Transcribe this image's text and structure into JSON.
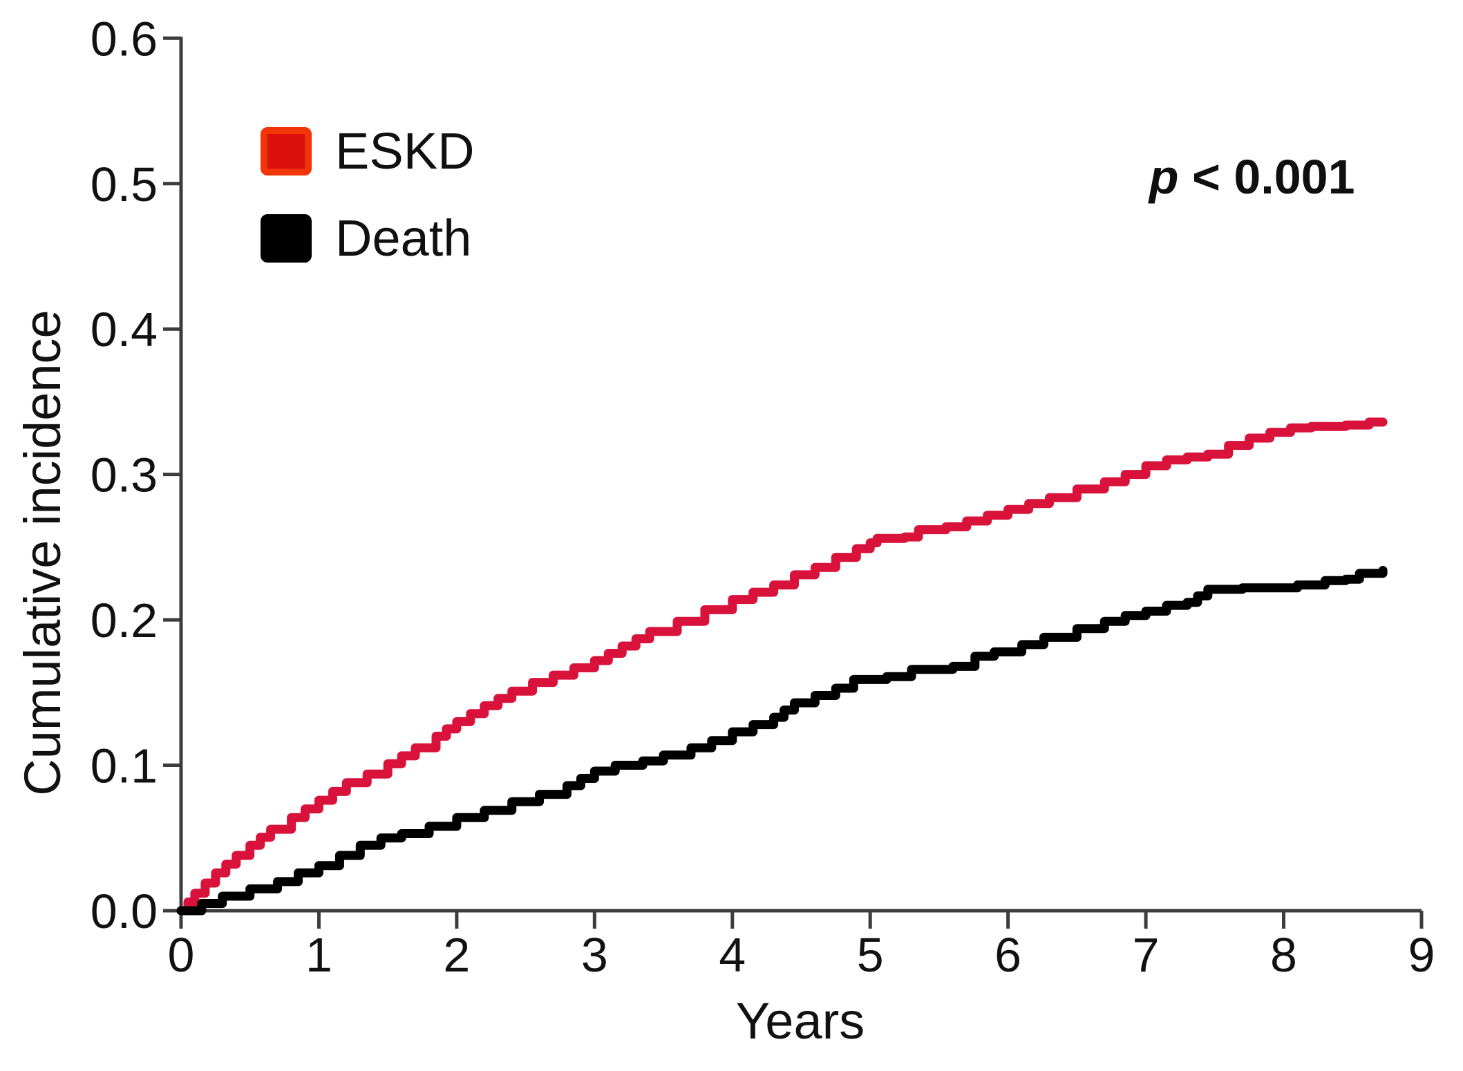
{
  "chart_data": {
    "type": "line",
    "title": "",
    "xlabel": "Years",
    "ylabel": "Cumulative incidence",
    "annotation": {
      "variable": "p",
      "comparison": " < 0.001"
    },
    "x_range": [
      0,
      9
    ],
    "y_range": [
      0.0,
      0.6
    ],
    "x_ticks": [
      "0",
      "1",
      "2",
      "3",
      "4",
      "5",
      "6",
      "7",
      "8",
      "9"
    ],
    "y_ticks": [
      "0.0",
      "0.1",
      "0.2",
      "0.3",
      "0.4",
      "0.5",
      "0.6"
    ],
    "grid": false,
    "legend_position": "inside-top-left",
    "axis_color": "#3C3C3C",
    "text_color": "#111111",
    "series": [
      {
        "name": "ESKD",
        "line_color": "#D8123A",
        "swatch_fill": "#DB100D",
        "swatch_border": "#F23508",
        "points": [
          [
            0,
            0
          ],
          [
            0.1,
            0.012
          ],
          [
            0.25,
            0.026
          ],
          [
            0.4,
            0.038
          ],
          [
            0.5,
            0.045
          ],
          [
            0.65,
            0.056
          ],
          [
            0.8,
            0.064
          ],
          [
            1,
            0.076
          ],
          [
            1.2,
            0.088
          ],
          [
            1.35,
            0.094
          ],
          [
            1.5,
            0.101
          ],
          [
            1.7,
            0.112
          ],
          [
            1.85,
            0.12
          ],
          [
            2,
            0.13
          ],
          [
            2.2,
            0.141
          ],
          [
            2.4,
            0.151
          ],
          [
            2.55,
            0.157
          ],
          [
            2.7,
            0.162
          ],
          [
            2.85,
            0.167
          ],
          [
            3,
            0.172
          ],
          [
            3.2,
            0.182
          ],
          [
            3.4,
            0.192
          ],
          [
            3.6,
            0.199
          ],
          [
            3.8,
            0.207
          ],
          [
            4,
            0.214
          ],
          [
            4.15,
            0.219
          ],
          [
            4.3,
            0.224
          ],
          [
            4.45,
            0.231
          ],
          [
            4.6,
            0.236
          ],
          [
            4.75,
            0.243
          ],
          [
            4.9,
            0.249
          ],
          [
            5.0,
            0.253
          ],
          [
            5.05,
            0.256
          ],
          [
            5.25,
            0.257
          ],
          [
            5.35,
            0.262
          ],
          [
            5.55,
            0.264
          ],
          [
            5.7,
            0.268
          ],
          [
            5.85,
            0.272
          ],
          [
            6,
            0.276
          ],
          [
            6.15,
            0.28
          ],
          [
            6.3,
            0.284
          ],
          [
            6.5,
            0.29
          ],
          [
            6.7,
            0.295
          ],
          [
            6.85,
            0.3
          ],
          [
            7,
            0.306
          ],
          [
            7.15,
            0.31
          ],
          [
            7.3,
            0.312
          ],
          [
            7.45,
            0.314
          ],
          [
            7.6,
            0.32
          ],
          [
            7.75,
            0.325
          ],
          [
            7.9,
            0.329
          ],
          [
            8.05,
            0.332
          ],
          [
            8.2,
            0.333
          ],
          [
            8.45,
            0.334
          ],
          [
            8.55,
            0.334
          ],
          [
            8.62,
            0.336
          ],
          [
            8.72,
            0.336
          ]
        ]
      },
      {
        "name": "Death",
        "line_color": "#000000",
        "swatch_fill": "#000000",
        "swatch_border": "#000000",
        "points": [
          [
            0,
            0
          ],
          [
            0.15,
            0.005
          ],
          [
            0.3,
            0.01
          ],
          [
            0.5,
            0.015
          ],
          [
            0.7,
            0.02
          ],
          [
            0.85,
            0.026
          ],
          [
            1,
            0.031
          ],
          [
            1.15,
            0.038
          ],
          [
            1.3,
            0.045
          ],
          [
            1.45,
            0.05
          ],
          [
            1.6,
            0.053
          ],
          [
            1.8,
            0.058
          ],
          [
            2,
            0.064
          ],
          [
            2.2,
            0.069
          ],
          [
            2.4,
            0.075
          ],
          [
            2.6,
            0.08
          ],
          [
            2.8,
            0.086
          ],
          [
            3,
            0.096
          ],
          [
            3.15,
            0.1
          ],
          [
            3.35,
            0.103
          ],
          [
            3.5,
            0.107
          ],
          [
            3.7,
            0.112
          ],
          [
            3.85,
            0.117
          ],
          [
            4,
            0.123
          ],
          [
            4.15,
            0.128
          ],
          [
            4.3,
            0.133
          ],
          [
            4.45,
            0.143
          ],
          [
            4.6,
            0.148
          ],
          [
            4.75,
            0.153
          ],
          [
            4.88,
            0.159
          ],
          [
            5.12,
            0.161
          ],
          [
            5.3,
            0.166
          ],
          [
            5.6,
            0.168
          ],
          [
            5.76,
            0.175
          ],
          [
            5.9,
            0.178
          ],
          [
            6.1,
            0.183
          ],
          [
            6.26,
            0.188
          ],
          [
            6.5,
            0.194
          ],
          [
            6.7,
            0.199
          ],
          [
            6.85,
            0.203
          ],
          [
            7,
            0.206
          ],
          [
            7.15,
            0.21
          ],
          [
            7.3,
            0.212
          ],
          [
            7.45,
            0.221
          ],
          [
            7.7,
            0.222
          ],
          [
            7.95,
            0.222
          ],
          [
            8.1,
            0.224
          ],
          [
            8.3,
            0.227
          ],
          [
            8.45,
            0.228
          ],
          [
            8.55,
            0.232
          ],
          [
            8.72,
            0.234
          ]
        ]
      }
    ]
  }
}
